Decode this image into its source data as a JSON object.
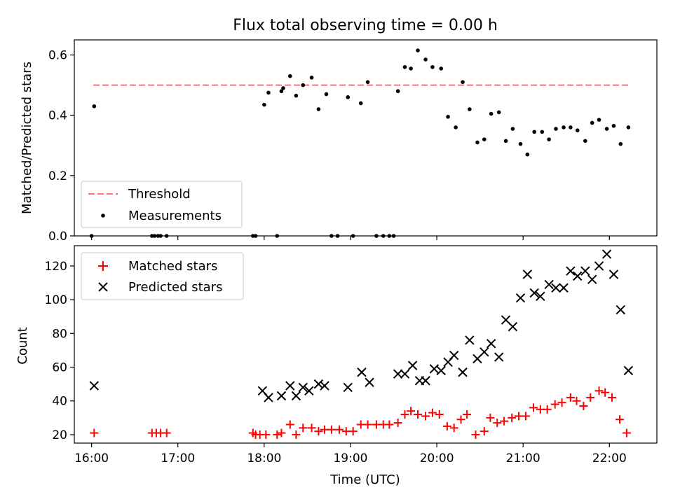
{
  "chart_data": [
    {
      "type": "scatter",
      "title": "Flux total observing time = 0.00 h",
      "xlabel": "",
      "ylabel": "Matched/Predicted stars",
      "ylim": [
        0,
        0.65
      ],
      "yticks": [
        "0.0",
        "0.2",
        "0.4",
        "0.6"
      ],
      "threshold": {
        "name": "Threshold",
        "value": 0.5,
        "x_range": [
          16.02,
          22.22
        ],
        "color": "#ff7070"
      },
      "series": [
        {
          "name": "Measurements",
          "color": "#000000",
          "x": [
            16.0,
            16.03,
            16.7,
            16.73,
            16.77,
            16.8,
            16.87,
            17.87,
            17.9,
            18.0,
            18.05,
            18.15,
            18.2,
            18.22,
            18.3,
            18.37,
            18.45,
            18.55,
            18.63,
            18.72,
            18.78,
            18.85,
            18.97,
            19.03,
            19.12,
            19.2,
            19.3,
            19.38,
            19.45,
            19.5,
            19.55,
            19.63,
            19.7,
            19.78,
            19.87,
            19.95,
            20.05,
            20.13,
            20.22,
            20.3,
            20.38,
            20.47,
            20.55,
            20.63,
            20.72,
            20.8,
            20.88,
            20.97,
            21.05,
            21.13,
            21.22,
            21.3,
            21.38,
            21.47,
            21.55,
            21.63,
            21.72,
            21.8,
            21.88,
            21.97,
            22.05,
            22.13,
            22.22
          ],
          "y": [
            0.0,
            0.43,
            0.0,
            0.0,
            0.0,
            0.0,
            0.0,
            0.0,
            0.0,
            0.435,
            0.475,
            0.0,
            0.48,
            0.49,
            0.53,
            0.465,
            0.5,
            0.525,
            0.42,
            0.47,
            0.0,
            0.0,
            0.46,
            0.0,
            0.44,
            0.51,
            0.0,
            0.0,
            0.0,
            0.0,
            0.48,
            0.56,
            0.555,
            0.615,
            0.585,
            0.56,
            0.555,
            0.395,
            0.36,
            0.51,
            0.42,
            0.31,
            0.32,
            0.405,
            0.41,
            0.315,
            0.355,
            0.305,
            0.27,
            0.345,
            0.345,
            0.32,
            0.355,
            0.36,
            0.36,
            0.35,
            0.315,
            0.375,
            0.385,
            0.355,
            0.365,
            0.305,
            0.36
          ]
        }
      ],
      "legend": "lower-left"
    },
    {
      "type": "scatter",
      "xlabel": "Time (UTC)",
      "ylabel": "Count",
      "xlim": [
        15.8,
        22.55
      ],
      "ylim": [
        15,
        132
      ],
      "yticks": [
        "20",
        "40",
        "60",
        "80",
        "100",
        "120"
      ],
      "x_tick_values": [
        16,
        17,
        18,
        19,
        20,
        21,
        22
      ],
      "xticks": [
        "16:00",
        "17:00",
        "18:00",
        "19:00",
        "20:00",
        "21:00",
        "22:00"
      ],
      "series": [
        {
          "name": "Matched stars",
          "color": "#ff0000",
          "marker": "plus",
          "x": [
            16.03,
            16.7,
            16.75,
            16.8,
            16.87,
            17.87,
            17.9,
            17.95,
            18.02,
            18.15,
            18.2,
            18.3,
            18.37,
            18.45,
            18.55,
            18.63,
            18.7,
            18.78,
            18.87,
            18.95,
            19.03,
            19.12,
            19.2,
            19.3,
            19.38,
            19.45,
            19.55,
            19.63,
            19.7,
            19.78,
            19.87,
            19.95,
            20.03,
            20.12,
            20.2,
            20.28,
            20.35,
            20.45,
            20.55,
            20.62,
            20.7,
            20.78,
            20.87,
            20.95,
            21.03,
            21.12,
            21.2,
            21.28,
            21.37,
            21.45,
            21.55,
            21.62,
            21.7,
            21.78,
            21.88,
            21.95,
            22.03,
            22.12,
            22.2
          ],
          "y": [
            21,
            21,
            21,
            21,
            21,
            21,
            20,
            20,
            20,
            20,
            21,
            26,
            20,
            24,
            24,
            22,
            23,
            23,
            23,
            22,
            22,
            26,
            26,
            26,
            26,
            26,
            27,
            32,
            34,
            32,
            31,
            33,
            32,
            25,
            24,
            29,
            32,
            20,
            22,
            30,
            27,
            28,
            30,
            31,
            31,
            36,
            35,
            35,
            38,
            39,
            42,
            40,
            37,
            42,
            46,
            45,
            42,
            29,
            21
          ]
        },
        {
          "name": "Predicted stars",
          "color": "#000000",
          "marker": "x",
          "x": [
            16.03,
            17.98,
            18.05,
            18.2,
            18.3,
            18.37,
            18.45,
            18.52,
            18.63,
            18.7,
            18.97,
            19.13,
            19.22,
            19.55,
            19.63,
            19.72,
            19.8,
            19.87,
            19.97,
            20.05,
            20.13,
            20.2,
            20.3,
            20.38,
            20.47,
            20.55,
            20.63,
            20.72,
            20.8,
            20.88,
            20.97,
            21.05,
            21.13,
            21.2,
            21.3,
            21.38,
            21.47,
            21.55,
            21.63,
            21.72,
            21.8,
            21.88,
            21.97,
            22.05,
            22.13,
            22.22
          ],
          "y": [
            49,
            46,
            42,
            43,
            49,
            43,
            48,
            46,
            50,
            49,
            48,
            57,
            51,
            56,
            56,
            61,
            52,
            52,
            59,
            58,
            63,
            67,
            57,
            76,
            65,
            69,
            74,
            66,
            88,
            84,
            101,
            115,
            104,
            102,
            109,
            107,
            107,
            117,
            114,
            117,
            112,
            120,
            127,
            115,
            94,
            58
          ]
        }
      ],
      "legend": "upper-left"
    }
  ]
}
